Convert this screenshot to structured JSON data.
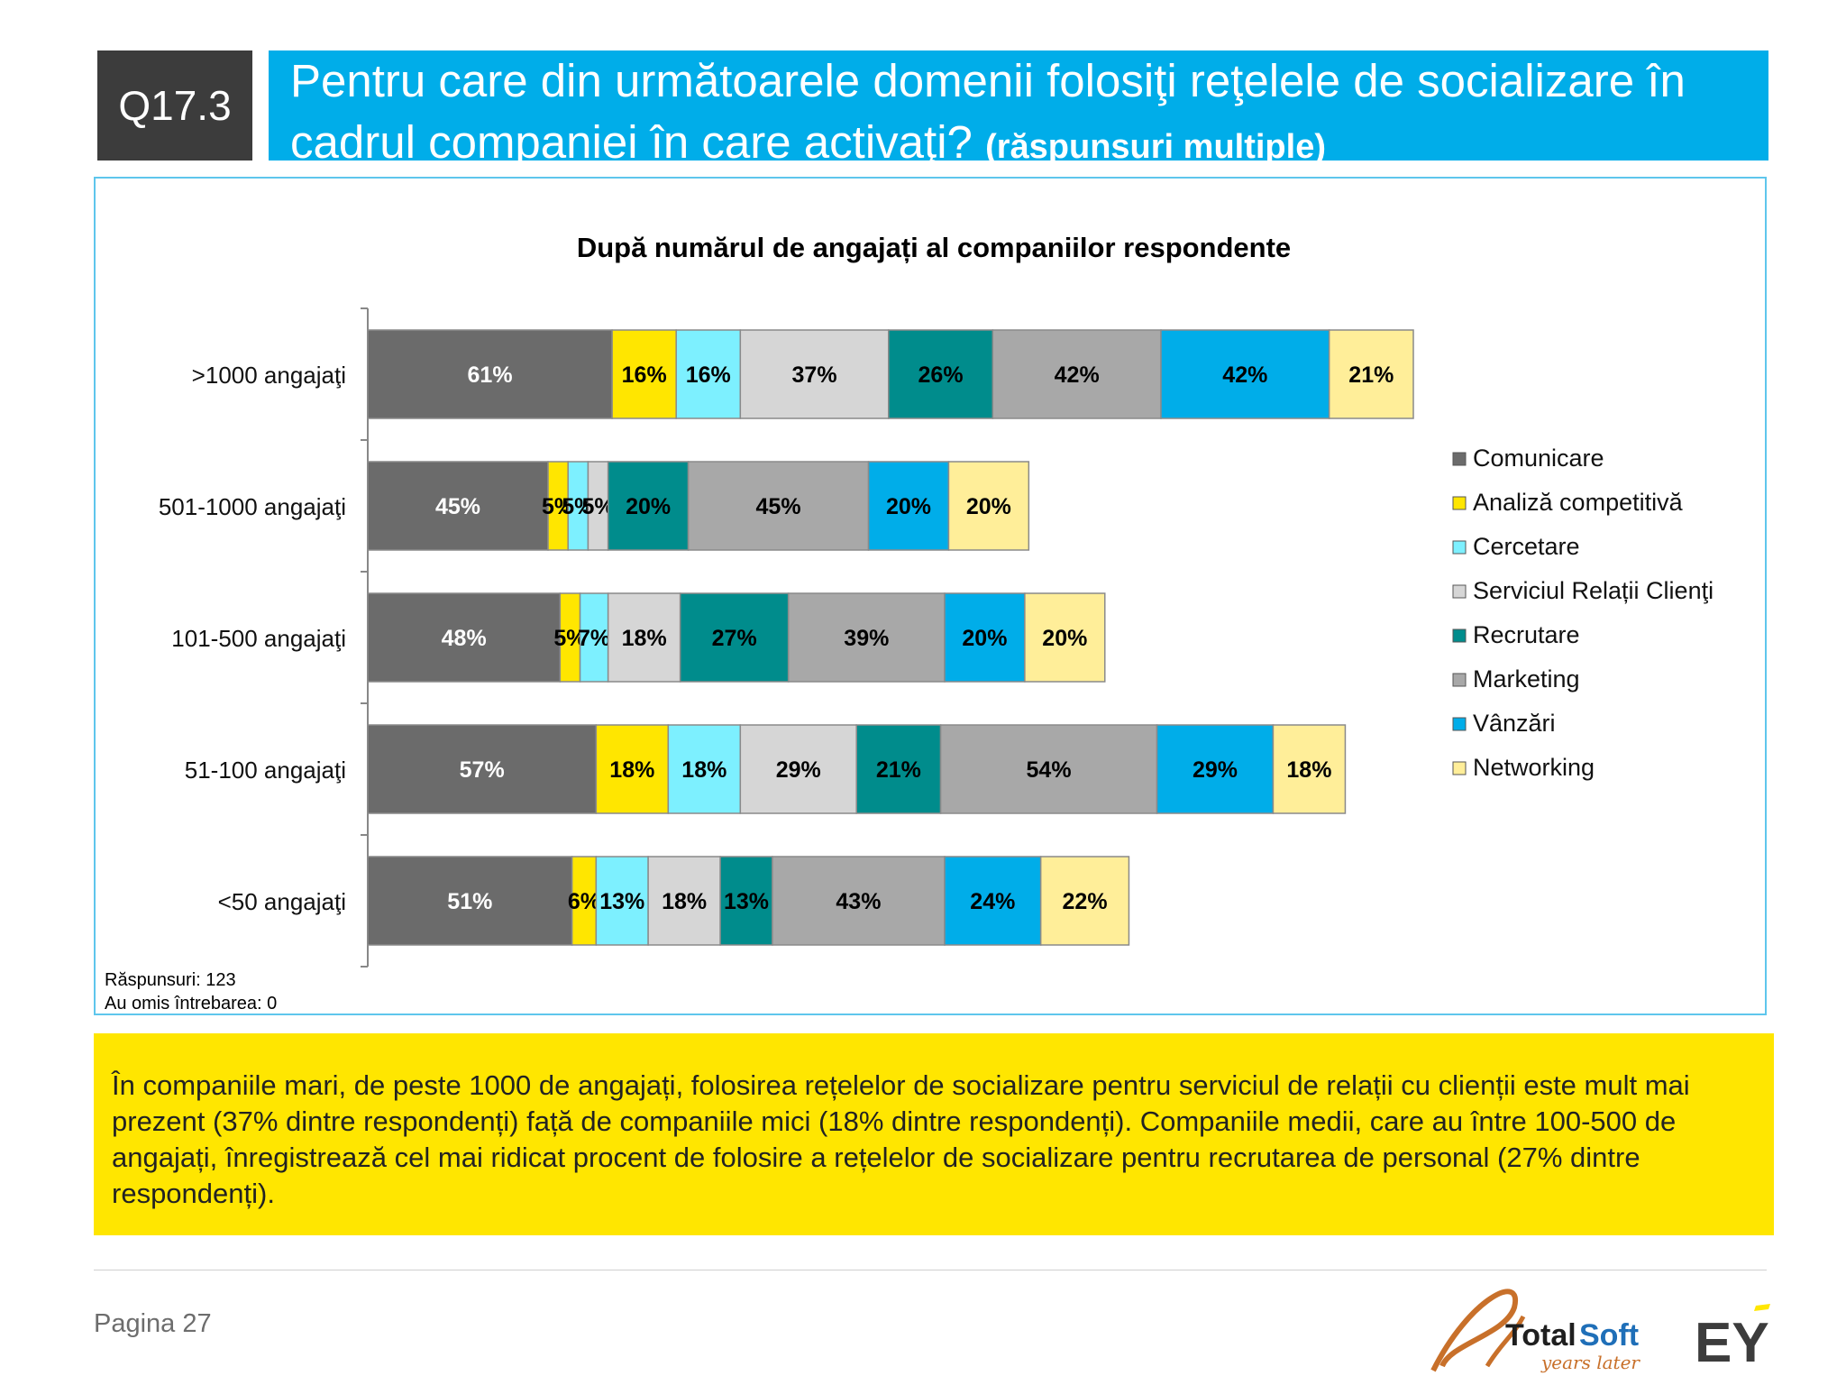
{
  "header": {
    "question_id": "Q17.3",
    "title": "Pentru care din următoarele domenii folosiţi reţelele de socializare în cadrul companiei în care activaţi?",
    "subtitle": "(răspunsuri multiple)"
  },
  "chart_data": {
    "type": "bar",
    "orientation": "horizontal",
    "stacked": true,
    "title": "După numărul de angajați al companiilor respondente",
    "categories": [
      ">1000 angajaţi",
      "501-1000 angajaţi",
      "101-500 angajaţi",
      "51-100 angajaţi",
      "<50 angajaţi"
    ],
    "series": [
      {
        "name": "Comunicare",
        "color": "#6b6b6b",
        "values": [
          61,
          45,
          48,
          57,
          51
        ]
      },
      {
        "name": "Analiză competitivă",
        "color": "#ffe600",
        "values": [
          16,
          5,
          5,
          18,
          6
        ]
      },
      {
        "name": "Cercetare",
        "color": "#7df0ff",
        "values": [
          16,
          5,
          7,
          18,
          13
        ]
      },
      {
        "name": "Serviciul Relații Clienţi",
        "color": "#d6d6d6",
        "values": [
          37,
          5,
          18,
          29,
          18
        ]
      },
      {
        "name": "Recrutare",
        "color": "#008c8c",
        "values": [
          26,
          20,
          27,
          21,
          13
        ]
      },
      {
        "name": "Marketing",
        "color": "#a8a8a8",
        "values": [
          42,
          45,
          39,
          54,
          43
        ]
      },
      {
        "name": "Vânzări",
        "color": "#00ade9",
        "values": [
          42,
          20,
          20,
          29,
          24
        ]
      },
      {
        "name": "Networking",
        "color": "#ffee99",
        "values": [
          21,
          20,
          20,
          18,
          22
        ]
      }
    ],
    "value_suffix": "%",
    "legend_position": "right",
    "notes": [
      "Răspunsuri: 123",
      "Au omis întrebarea: 0"
    ]
  },
  "summary_text": "În companiile mari, de peste 1000 de angajați, folosirea rețelelor de socializare pentru serviciul de relații cu clienții este mult mai prezent (37% dintre respondenți) față de companiile mici (18% dintre respondenți). Companiile medii, care au între 100-500 de angajați, înregistrează cel mai ridicat procent de folosire a rețelelor de socializare pentru recrutarea de personal (27% dintre respondenți).",
  "footer": {
    "page_label": "Pagina 27",
    "logo_totalsoft": {
      "word1": "Total",
      "word2": "Soft",
      "tagline": "years later"
    },
    "logo_ey": "EY"
  }
}
